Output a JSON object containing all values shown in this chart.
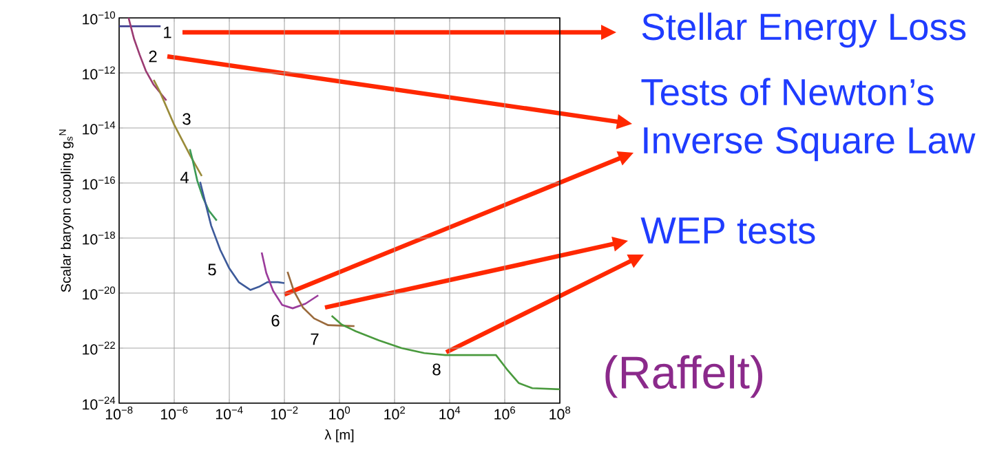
{
  "chart_data": {
    "type": "line",
    "xlabel": "λ [m]",
    "ylabel": "Scalar baryon coupling g$_{s}$$^{N}$",
    "log": "xy",
    "grid": true,
    "xlim": [
      1e-08,
      100000000.0
    ],
    "ylim": [
      1e-24,
      1e-10
    ],
    "xticks": [
      {
        "value": 1e-08,
        "label": "10$^{−8}$"
      },
      {
        "value": 1e-06,
        "label": "10$^{−6}$"
      },
      {
        "value": 0.0001,
        "label": "10$^{−4}$"
      },
      {
        "value": 0.01,
        "label": "10$^{−2}$"
      },
      {
        "value": 1,
        "label": "10$^{0}$"
      },
      {
        "value": 100.0,
        "label": "10$^{2}$"
      },
      {
        "value": 10000.0,
        "label": "10$^{4}$"
      },
      {
        "value": 1000000.0,
        "label": "10$^{6}$"
      },
      {
        "value": 100000000.0,
        "label": "10$^{8}$"
      }
    ],
    "yticks": [
      {
        "value": 1e-24,
        "label": "10$^{−24}$"
      },
      {
        "value": 1e-22,
        "label": "10$^{−22}$"
      },
      {
        "value": 1e-20,
        "label": "10$^{−20}$"
      },
      {
        "value": 1e-18,
        "label": "10$^{−18}$"
      },
      {
        "value": 1e-16,
        "label": "10$^{−16}$"
      },
      {
        "value": 1e-14,
        "label": "10$^{−14}$"
      },
      {
        "value": 1e-12,
        "label": "10$^{−12}$"
      },
      {
        "value": 1e-10,
        "label": "10$^{−10}$"
      }
    ],
    "series": [
      {
        "name": "1",
        "color": "#3b3b8f",
        "x": [
          1e-08,
          3.2e-07
        ],
        "values": [
          5e-11,
          5e-11
        ]
      },
      {
        "name": "2",
        "color": "#9b3b73",
        "x": [
          2.2e-08,
          3.5e-08,
          5.6e-08,
          9.3e-08,
          1.8e-07,
          5.2e-07
        ],
        "values": [
          1e-10,
          1.7e-11,
          4.5e-12,
          1.2e-12,
          3.7e-13,
          1e-13
        ]
      },
      {
        "name": "3",
        "color": "#9a8b3a",
        "x": [
          1.8e-07,
          3e-07,
          1e-06,
          3.9e-06,
          1e-05
        ],
        "values": [
          5.6e-13,
          2.1e-13,
          1.3e-14,
          9.5e-16,
          1.8e-16
        ]
      },
      {
        "name": "4",
        "color": "#3c9a55",
        "x": [
          3.7e-06,
          4.7e-06,
          6.9e-06,
          1.1e-05,
          1.8e-05,
          3.5e-05
        ],
        "values": [
          1.7e-15,
          6.6e-16,
          1.2e-16,
          3e-17,
          1e-17,
          4.3e-18
        ]
      },
      {
        "name": "5",
        "color": "#3d5a9a",
        "x": [
          8.7e-06,
          2.2e-05,
          4.7e-05,
          0.0001,
          0.00022,
          0.00058,
          0.0012,
          0.0024,
          0.0058,
          0.01
        ],
        "values": [
          1.1e-16,
          2.8e-18,
          3.7e-19,
          7.9e-20,
          2.5e-20,
          1.3e-20,
          1.7e-20,
          2.5e-20,
          2.5e-20,
          2.3e-20
        ]
      },
      {
        "name": "6",
        "color": "#9b3c9b",
        "x": [
          0.0015,
          0.0022,
          0.0039,
          0.0083,
          0.02,
          0.058,
          0.17
        ],
        "values": [
          3e-19,
          5.4e-20,
          1.2e-20,
          3.7e-21,
          2.8e-21,
          4.1e-21,
          8.3e-21
        ]
      },
      {
        "name": "7",
        "color": "#9a6a3c",
        "x": [
          0.013,
          0.022,
          0.047,
          0.12,
          0.39,
          3.5
        ],
        "values": [
          5.9e-20,
          1.2e-20,
          3e-21,
          1.2e-21,
          6.8e-22,
          6.3e-22
        ]
      },
      {
        "name": "8",
        "color": "#4a9a3e",
        "x": [
          0.52,
          1.2,
          3.9,
          27,
          180,
          1200,
          6900,
          480000.0,
          1200000.0,
          3200000.0,
          10000000.0,
          100000000.0
        ],
        "values": [
          1.5e-21,
          7.2e-22,
          4.1e-22,
          1.9e-22,
          1e-22,
          6.6e-23,
          5.6e-23,
          5.6e-23,
          1.7e-23,
          5.4e-24,
          3.5e-24,
          3.2e-24
        ]
      }
    ],
    "annotations": [
      "Stellar Energy Loss",
      "Tests of Newton’s Inverse Square Law",
      "WEP tests",
      "(Raffelt)"
    ]
  }
}
